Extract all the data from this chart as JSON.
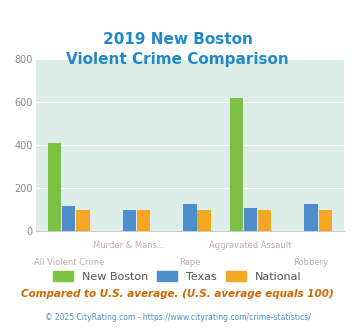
{
  "title_line1": "2019 New Boston",
  "title_line2": "Violent Crime Comparison",
  "categories": [
    "All Violent Crime",
    "Murder & Mans...",
    "Rape",
    "Aggravated Assault",
    "Robbery"
  ],
  "new_boston": [
    410,
    0,
    0,
    620,
    0
  ],
  "texas": [
    115,
    100,
    125,
    107,
    125
  ],
  "national": [
    100,
    100,
    100,
    100,
    100
  ],
  "bar_colors": {
    "new_boston": "#7dc142",
    "texas": "#4d8fcc",
    "national": "#f5a623"
  },
  "ylim": [
    0,
    800
  ],
  "yticks": [
    0,
    200,
    400,
    600,
    800
  ],
  "title_color": "#2288cc",
  "legend_labels": [
    "New Boston",
    "Texas",
    "National"
  ],
  "footnote1": "Compared to U.S. average. (U.S. average equals 100)",
  "footnote2": "© 2025 CityRating.com - https://www.cityrating.com/crime-statistics/",
  "bg_color": "#ddeee8",
  "fig_bg": "#ffffff",
  "label_color_upper": "#c0a8c0",
  "label_color_lower": "#c0a8b8"
}
